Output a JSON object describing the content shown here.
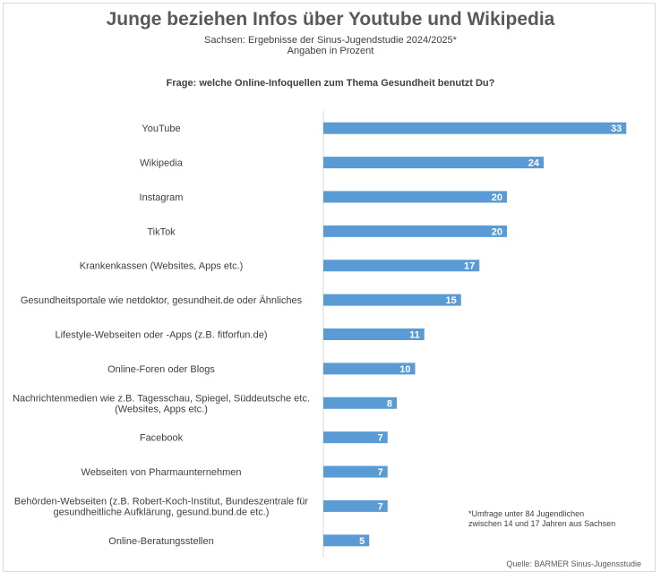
{
  "chart_data": {
    "type": "bar",
    "orientation": "horizontal",
    "title": "Junge beziehen Infos über Youtube und Wikipedia",
    "subtitle": [
      "Sachsen: Ergebnisse der Sinus-Jugendstudie 2024/2025*",
      "Angaben in Prozent"
    ],
    "question": "Frage: welche Online-Infoquellen zum Thema Gesundheit benutzt Du?",
    "categories": [
      [
        "YouTube"
      ],
      [
        "Wikipedia"
      ],
      [
        "Instagram"
      ],
      [
        "TikTok"
      ],
      [
        "Krankenkassen (Websites, Apps etc.)"
      ],
      [
        "Gesundheitsportale wie netdoktor, gesundheit.de oder Ähnliches"
      ],
      [
        "Lifestyle-Webseiten oder -Apps (z.B. fitforfun.de)"
      ],
      [
        "Online-Foren oder Blogs"
      ],
      [
        "Nachrichtenmedien wie z.B. Tagesschau, Spiegel, Süddeutsche etc.",
        "(Websites, Apps etc.)"
      ],
      [
        "Facebook"
      ],
      [
        "Webseiten von Pharmaunternehmen"
      ],
      [
        "Behörden-Webseiten (z.B. Robert-Koch-Institut, Bundeszentrale für",
        "gesundheitliche Aufklärung, gesund.bund.de etc.)"
      ],
      [
        "Online-Beratungsstellen"
      ]
    ],
    "values": [
      33,
      24,
      20,
      20,
      17,
      15,
      11,
      10,
      8,
      7,
      7,
      7,
      5
    ],
    "xlim": [
      0,
      35
    ],
    "grid": false,
    "bar_color": "#5b9bd5",
    "axis_color": "#d9d9d9"
  },
  "footnote": [
    "*Umfrage unter 84 Jugendlichen",
    "zwischen 14 und 17 Jahren aus Sachsen"
  ],
  "source": "Quelle: BARMER Sinus-Jugensstudie"
}
